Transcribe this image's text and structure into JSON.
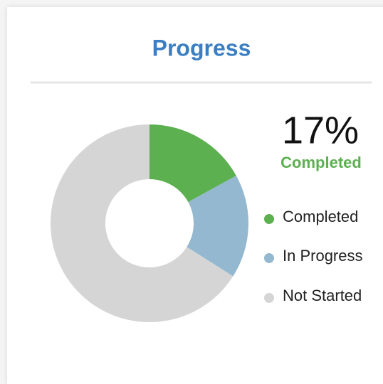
{
  "chart_data": {
    "type": "donut",
    "title": "Progress",
    "summary": "17%",
    "summary_label": "Completed",
    "categories": [
      "Completed",
      "In Progress",
      "Not Started"
    ],
    "values": [
      17,
      17,
      66
    ],
    "colors": [
      "#5cb050",
      "#93b8cf",
      "#d5d5d5"
    ],
    "legend": "right"
  }
}
